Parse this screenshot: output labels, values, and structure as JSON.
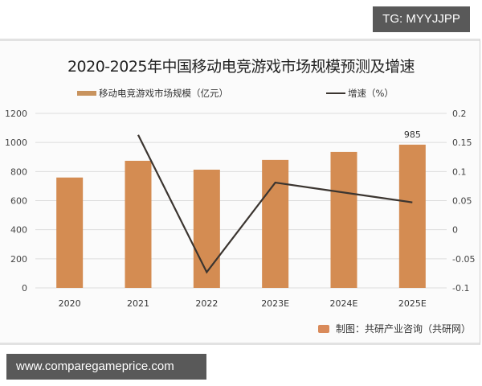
{
  "watermarks": {
    "top_badge": "TG: MYYJJPP",
    "bottom_badge": "www.comparegameprice.com"
  },
  "chart": {
    "title": "2020-2025年中国移动电竞游戏市场规模预测及增速",
    "legend": {
      "bar_label": "移动电竞游戏市场规模（亿元）",
      "line_label": "增速（%）"
    },
    "source": "制图：共研产业咨询（共研网）",
    "bar_color": "#d48c52",
    "line_color": "#3b3530"
  },
  "chart_data": {
    "type": "bar",
    "title": "2020-2025年中国移动电竞游戏市场规模预测及增速",
    "categories": [
      "2020",
      "2021",
      "2022",
      "2023E",
      "2024E",
      "2025E"
    ],
    "series": [
      {
        "name": "移动电竞游戏市场规模（亿元）",
        "type": "bar",
        "axis": "left",
        "values": [
          759,
          874,
          813,
          880,
          935,
          985
        ]
      },
      {
        "name": "增速（%）",
        "type": "line",
        "axis": "right",
        "values": [
          null,
          0.163,
          -0.073,
          0.081,
          0.064,
          0.047
        ]
      }
    ],
    "data_labels": [
      {
        "category": "2025E",
        "value": "985"
      }
    ],
    "y_left": {
      "ticks": [
        "0",
        "200",
        "400",
        "600",
        "800",
        "1000",
        "1200"
      ],
      "ylim": [
        0,
        1200
      ]
    },
    "y_right": {
      "ticks": [
        "-0.1",
        "-0.05",
        "0",
        "0.05",
        "0.1",
        "0.15",
        "0.2"
      ],
      "ylim": [
        -0.1,
        0.2
      ]
    },
    "xlabel": "",
    "ylabel": "",
    "grid": true,
    "legend_position": "top"
  }
}
